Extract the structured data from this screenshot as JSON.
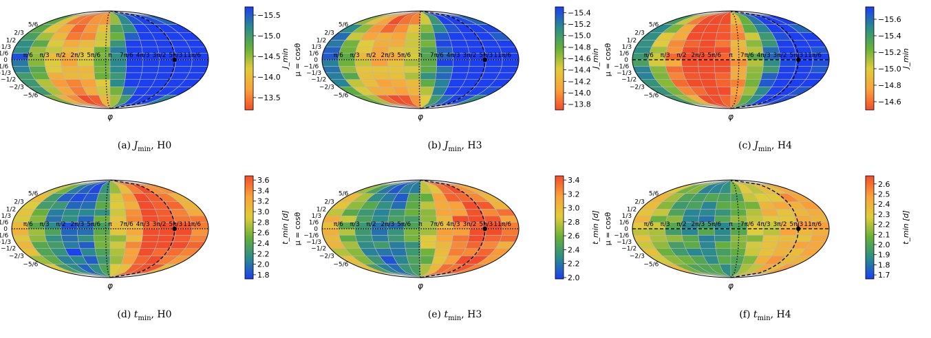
{
  "chart_data": [
    {
      "type": "heatmap",
      "id": "a",
      "projection": "mollweide",
      "caption": {
        "label": "(a)",
        "quantity": "J",
        "sub": "min",
        "model": "H0"
      },
      "xlabel": "φ",
      "ylabel": "μ = cosθ",
      "colorbar": {
        "label": "J_min",
        "ticks": [
          -15.5,
          -15.0,
          -14.5,
          -14.0,
          -13.5
        ],
        "tick_labels": [
          "−15.5",
          "−15.0",
          "−14.5",
          "−14.0",
          "−13.5"
        ],
        "range": [
          -15.7,
          -13.2
        ],
        "invert": true
      },
      "colormap": [
        "#1c3ff0",
        "#2a8c8c",
        "#64b03a",
        "#e0cc3a",
        "#f9a33a",
        "#f34c2a"
      ],
      "pattern": {
        "amplitude": 0.55,
        "phase": 1.9,
        "lat_amp": -0.35
      },
      "curves": {
        "dotted_phi": 3.0,
        "dashed_phi": 5.2,
        "marker_phi": 5.2,
        "equator": "dotted"
      },
      "tick_labels_phi": [
        "π/6",
        "π/3",
        "π/2",
        "2π/3",
        "5π/6",
        "π",
        "7π/6",
        "4π/3",
        "3π/2",
        "5π/3",
        "11π/6"
      ],
      "tick_labels_mu": [
        "5/6",
        "2/3",
        "1/2",
        "1/3",
        "1/6",
        "0",
        "−1/6",
        "−1/3",
        "−1/2",
        "−2/3",
        "−5/6"
      ]
    },
    {
      "type": "heatmap",
      "id": "b",
      "projection": "mollweide",
      "caption": {
        "label": "(b)",
        "quantity": "J",
        "sub": "min",
        "model": "H3"
      },
      "xlabel": "φ",
      "ylabel": "μ = cosθ",
      "colorbar": {
        "label": "J_min",
        "ticks": [
          -15.4,
          -15.2,
          -15.0,
          -14.8,
          -14.6,
          -14.4,
          -14.2,
          -14.0,
          -13.8
        ],
        "tick_labels": [
          "−15.4",
          "−15.2",
          "−15.0",
          "−14.8",
          "−14.6",
          "−14.4",
          "−14.2",
          "−14.0",
          "−13.8"
        ],
        "range": [
          -15.5,
          -13.7
        ],
        "invert": true
      },
      "colormap": [
        "#1c3ff0",
        "#2a8c8c",
        "#64b03a",
        "#e0cc3a",
        "#f9a33a",
        "#f34c2a"
      ],
      "pattern": {
        "amplitude": 0.5,
        "phase": 2.0,
        "lat_amp": -0.3
      },
      "curves": {
        "dotted_phi": 3.1,
        "dashed_phi": 5.2,
        "marker_phi": 5.2,
        "equator": "dotted"
      },
      "tick_labels_phi": [
        "π/6",
        "π/3",
        "π/2",
        "2π/3",
        "5π/6",
        "π",
        "7π/6",
        "4π/3",
        "3π/2",
        "5π/3",
        "11π/6"
      ],
      "tick_labels_mu": [
        "5/6",
        "2/3",
        "1/2",
        "1/3",
        "1/6",
        "0",
        "−1/6",
        "−1/3",
        "−1/2",
        "−2/3",
        "−5/6"
      ]
    },
    {
      "type": "heatmap",
      "id": "c",
      "projection": "mollweide",
      "caption": {
        "label": "(c)",
        "quantity": "J",
        "sub": "min",
        "model": "H4"
      },
      "xlabel": "φ",
      "ylabel": "μ = cosθ",
      "colorbar": {
        "label": "J_min",
        "ticks": [
          -15.6,
          -15.4,
          -15.2,
          -15.0,
          -14.8,
          -14.6
        ],
        "tick_labels": [
          "−15.6",
          "−15.4",
          "−15.2",
          "−15.0",
          "−14.8",
          "−14.6"
        ],
        "range": [
          -15.75,
          -14.5
        ],
        "invert": true
      },
      "colormap": [
        "#1c3ff0",
        "#2a8c8c",
        "#64b03a",
        "#e0cc3a",
        "#f9a33a",
        "#f34c2a"
      ],
      "pattern": {
        "amplitude": 0.6,
        "phase": 2.3,
        "lat_amp": 0.0
      },
      "curves": {
        "dotted_phi": 3.4,
        "dashed_phi": 5.3,
        "marker_phi": 5.3,
        "equator": "dashed"
      },
      "tick_labels_phi": [
        "π/6",
        "π/3",
        "π/2",
        "2π/3",
        "5π/6",
        "π",
        "7π/6",
        "4π/3",
        "3π/2",
        "5π/3",
        "11π/6"
      ],
      "tick_labels_mu": [
        "5/6",
        "2/3",
        "1/2",
        "1/3",
        "1/6",
        "0",
        "−1/6",
        "−1/3",
        "−1/2",
        "−2/3",
        "−5/6"
      ]
    },
    {
      "type": "heatmap",
      "id": "d",
      "projection": "mollweide",
      "caption": {
        "label": "(d)",
        "quantity": "t",
        "sub": "min",
        "model": "H0"
      },
      "xlabel": "φ",
      "ylabel": "μ = cosθ",
      "colorbar": {
        "label": "t_min [d]",
        "ticks": [
          3.6,
          3.4,
          3.2,
          3.0,
          2.8,
          2.6,
          2.4,
          2.2,
          2.0,
          1.8
        ],
        "tick_labels": [
          "3.6",
          "3.4",
          "3.2",
          "3.0",
          "2.8",
          "2.6",
          "2.4",
          "2.2",
          "2.0",
          "1.8"
        ],
        "range": [
          1.72,
          3.68
        ],
        "invert": false
      },
      "colormap": [
        "#1c3ff0",
        "#2a8c8c",
        "#64b03a",
        "#e0cc3a",
        "#f9a33a",
        "#f34c2a"
      ],
      "pattern": {
        "amplitude": -0.45,
        "phase": 1.9,
        "lat_amp": 0.1
      },
      "curves": {
        "dotted_phi": 3.0,
        "dashed_phi": 5.2,
        "marker_phi": 5.2,
        "equator": "dotted"
      },
      "tick_labels_phi": [
        "π/6",
        "π/3",
        "π/2",
        "2π/3",
        "5π/6",
        "π",
        "7π/6",
        "4π/3",
        "3π/2",
        "5π/3",
        "11π/6"
      ],
      "tick_labels_mu": [
        "5/6",
        "2/3",
        "1/2",
        "1/3",
        "1/6",
        "0",
        "−1/6",
        "−1/3",
        "−1/2",
        "−2/3",
        "−5/6"
      ]
    },
    {
      "type": "heatmap",
      "id": "e",
      "projection": "mollweide",
      "caption": {
        "label": "(e)",
        "quantity": "t",
        "sub": "min",
        "model": "H3"
      },
      "xlabel": "φ",
      "ylabel": "μ = cosθ",
      "colorbar": {
        "label": "t_min [d]",
        "ticks": [
          3.4,
          3.2,
          3.0,
          2.8,
          2.6,
          2.4,
          2.2,
          2.0
        ],
        "tick_labels": [
          "3.4",
          "3.2",
          "3.0",
          "2.8",
          "2.6",
          "2.4",
          "2.2",
          "2.0"
        ],
        "range": [
          1.98,
          3.46
        ],
        "invert": false
      },
      "colormap": [
        "#1c3ff0",
        "#2a8c8c",
        "#64b03a",
        "#e0cc3a",
        "#f9a33a",
        "#f34c2a"
      ],
      "pattern": {
        "amplitude": -0.4,
        "phase": 2.0,
        "lat_amp": 0.1
      },
      "curves": {
        "dotted_phi": 3.1,
        "dashed_phi": 5.2,
        "marker_phi": 5.2,
        "equator": "dotted"
      },
      "tick_labels_phi": [
        "π/6",
        "π/3",
        "π/2",
        "2π/3",
        "5π/6",
        "π",
        "7π/6",
        "4π/3",
        "3π/2",
        "5π/3",
        "11π/6"
      ],
      "tick_labels_mu": [
        "5/6",
        "2/3",
        "1/2",
        "1/3",
        "1/6",
        "0",
        "−1/6",
        "−1/3",
        "−1/2",
        "−2/3",
        "−5/6"
      ]
    },
    {
      "type": "heatmap",
      "id": "f",
      "projection": "mollweide",
      "caption": {
        "label": "(f)",
        "quantity": "t",
        "sub": "min",
        "model": "H4"
      },
      "xlabel": "φ",
      "ylabel": "μ = cosθ",
      "colorbar": {
        "label": "t_min [d]",
        "ticks": [
          2.6,
          2.5,
          2.4,
          2.3,
          2.2,
          2.1,
          2.0,
          1.9,
          1.8,
          1.7
        ],
        "tick_labels": [
          "2.6",
          "2.5",
          "2.4",
          "2.3",
          "2.2",
          "2.1",
          "2.0",
          "1.9",
          "1.8",
          "1.7"
        ],
        "range": [
          1.66,
          2.68
        ],
        "invert": false
      },
      "colormap": [
        "#1c3ff0",
        "#2a8c8c",
        "#64b03a",
        "#e0cc3a",
        "#f9a33a",
        "#f34c2a"
      ],
      "pattern": {
        "amplitude": -0.25,
        "phase": 2.3,
        "lat_amp": 0.0
      },
      "curves": {
        "dotted_phi": 3.4,
        "dashed_phi": 5.3,
        "marker_phi": 5.3,
        "equator": "dashed"
      },
      "tick_labels_phi": [
        "π/6",
        "π/3",
        "π/2",
        "2π/3",
        "5π/6",
        "π",
        "7π/6",
        "4π/3",
        "3π/2",
        "5π/3",
        "11π/6"
      ],
      "tick_labels_mu": [
        "5/6",
        "2/3",
        "1/2",
        "1/3",
        "1/6",
        "0",
        "−1/6",
        "−1/3",
        "−1/2",
        "−2/3",
        "−5/6"
      ]
    }
  ]
}
